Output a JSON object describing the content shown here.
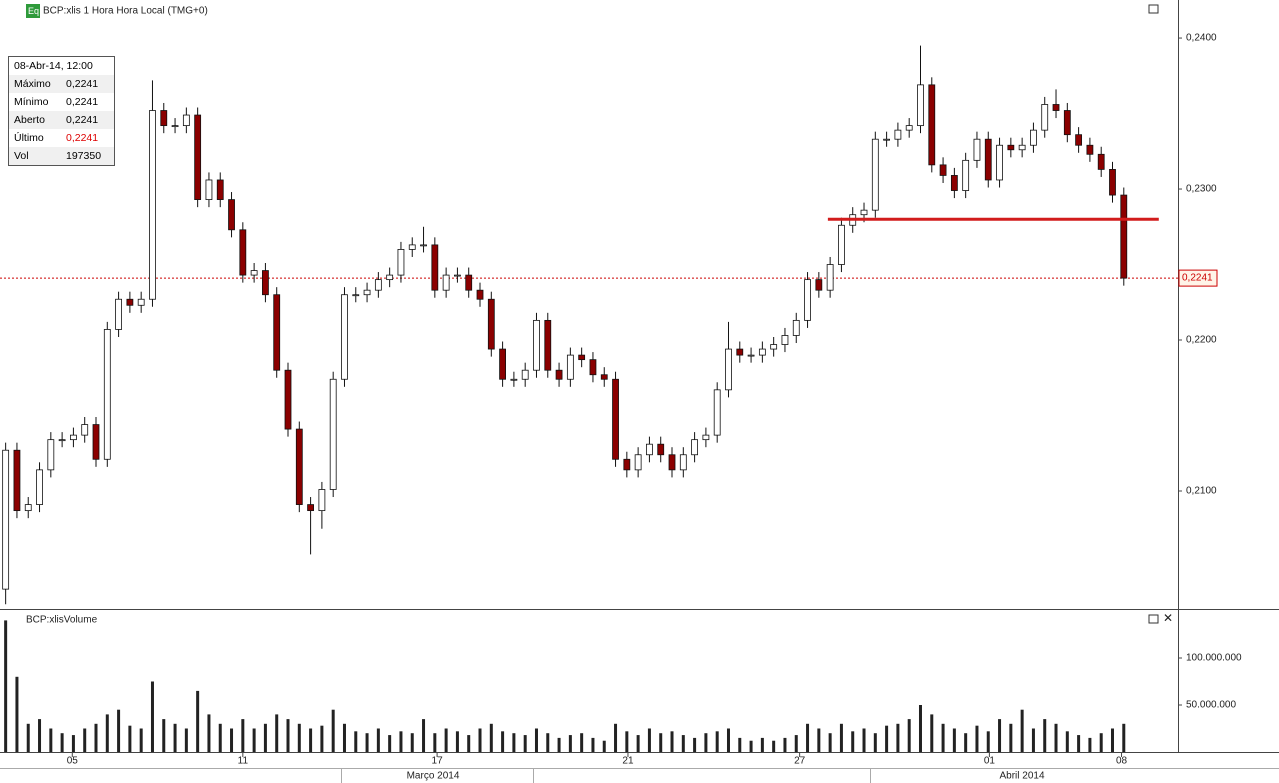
{
  "header": {
    "badge": "Eq",
    "title": "BCP:xlis 1 Hora Hora Local (TMG+0)"
  },
  "info": {
    "date": "08-Abr-14, 12:00",
    "rows": [
      [
        "Máximo",
        "0,2241"
      ],
      [
        "Mínimo",
        "0,2241"
      ],
      [
        "Aberto",
        "0,2241"
      ],
      [
        "Último",
        "0,2241"
      ],
      [
        "Vol",
        "197350"
      ]
    ]
  },
  "chart_data": [
    {
      "type": "candlestick",
      "months": [
        "Março 2014",
        "Abril 2014"
      ],
      "xlim": [
        -0.5,
        103.8
      ],
      "xticks": [
        {
          "value": 5.9,
          "label": "05"
        },
        {
          "value": 21.0,
          "label": "11"
        },
        {
          "value": 38.2,
          "label": "17"
        },
        {
          "value": 55.1,
          "label": "21"
        },
        {
          "value": 70.3,
          "label": "27"
        },
        {
          "value": 87.1,
          "label": "01"
        },
        {
          "value": 98.8,
          "label": "08"
        }
      ],
      "ylim": [
        0.20225,
        0.24252
      ],
      "yticks": [
        {
          "value": 0.21,
          "label": "0,2100"
        },
        {
          "value": 0.22,
          "label": "0,2200"
        },
        {
          "value": 0.23,
          "label": "0,2300"
        },
        {
          "value": 0.24,
          "label": "0,2400"
        }
      ],
      "up_color": "#ffffff",
      "down_color": "#8b0000",
      "open": [
        0.2035,
        0.2127,
        0.2087,
        0.2091,
        0.2114,
        0.2134,
        0.2134,
        0.2137,
        0.2144,
        0.2121,
        0.2207,
        0.2227,
        0.2223,
        0.2227,
        0.2352,
        0.2342,
        0.2342,
        0.2349,
        0.2293,
        0.2306,
        0.2293,
        0.2273,
        0.2243,
        0.2246,
        0.223,
        0.218,
        0.2141,
        0.2091,
        0.2087,
        0.2101,
        0.2174,
        0.223,
        0.223,
        0.2233,
        0.224,
        0.2243,
        0.226,
        0.2263,
        0.2263,
        0.2233,
        0.2243,
        0.2243,
        0.2233,
        0.2227,
        0.2194,
        0.2174,
        0.2174,
        0.218,
        0.2213,
        0.218,
        0.2174,
        0.219,
        0.2187,
        0.2177,
        0.2174,
        0.2121,
        0.2114,
        0.2124,
        0.2131,
        0.2124,
        0.2114,
        0.2124,
        0.2134,
        0.2137,
        0.2167,
        0.2194,
        0.219,
        0.219,
        0.2194,
        0.2197,
        0.2203,
        0.2213,
        0.224,
        0.2233,
        0.225,
        0.2276,
        0.2283,
        0.2286,
        0.2333,
        0.2333,
        0.2339,
        0.2342,
        0.2369,
        0.2316,
        0.2309,
        0.2299,
        0.2319,
        0.2333,
        0.2306,
        0.2329,
        0.2326,
        0.2329,
        0.2339,
        0.2356,
        0.2352,
        0.2336,
        0.2329,
        0.2323,
        0.2313,
        0.2296
      ],
      "high": [
        0.2132,
        0.2132,
        0.2096,
        0.2119,
        0.2139,
        0.2139,
        0.2142,
        0.2149,
        0.2149,
        0.2212,
        0.2232,
        0.2232,
        0.2232,
        0.2372,
        0.2357,
        0.2347,
        0.2354,
        0.2354,
        0.2311,
        0.2311,
        0.2298,
        0.2278,
        0.2251,
        0.2251,
        0.2235,
        0.2185,
        0.2146,
        0.2096,
        0.2106,
        0.2179,
        0.2235,
        0.2235,
        0.2238,
        0.2245,
        0.2248,
        0.2265,
        0.2268,
        0.2275,
        0.2268,
        0.2248,
        0.2248,
        0.2248,
        0.2238,
        0.2232,
        0.2199,
        0.2179,
        0.2185,
        0.2218,
        0.2218,
        0.2185,
        0.2195,
        0.2195,
        0.2192,
        0.2182,
        0.2179,
        0.2126,
        0.2129,
        0.2136,
        0.2136,
        0.2129,
        0.2129,
        0.2139,
        0.2142,
        0.2172,
        0.2212,
        0.2199,
        0.2195,
        0.2199,
        0.2202,
        0.2208,
        0.2218,
        0.2245,
        0.2245,
        0.2255,
        0.2281,
        0.2288,
        0.2291,
        0.2338,
        0.2338,
        0.2344,
        0.2347,
        0.2395,
        0.2374,
        0.2321,
        0.2314,
        0.2324,
        0.2338,
        0.2338,
        0.2334,
        0.2334,
        0.2334,
        0.2344,
        0.2361,
        0.2366,
        0.2357,
        0.2341,
        0.2334,
        0.2328,
        0.2318,
        0.2301
      ],
      "low": [
        0.2025,
        0.2082,
        0.2082,
        0.2086,
        0.2109,
        0.2129,
        0.2129,
        0.2132,
        0.2116,
        0.2116,
        0.2202,
        0.2218,
        0.2218,
        0.2222,
        0.2337,
        0.2337,
        0.2337,
        0.2288,
        0.2288,
        0.2288,
        0.2268,
        0.2238,
        0.2238,
        0.2225,
        0.2175,
        0.2136,
        0.2086,
        0.2058,
        0.2075,
        0.2096,
        0.2169,
        0.2225,
        0.2225,
        0.2228,
        0.2235,
        0.2238,
        0.2255,
        0.2258,
        0.2228,
        0.2228,
        0.2238,
        0.2228,
        0.2222,
        0.2189,
        0.2169,
        0.2169,
        0.2169,
        0.2175,
        0.2175,
        0.2169,
        0.2169,
        0.2182,
        0.2172,
        0.2169,
        0.2116,
        0.2109,
        0.2109,
        0.2119,
        0.2119,
        0.2109,
        0.2109,
        0.2119,
        0.2129,
        0.2132,
        0.2162,
        0.2185,
        0.2185,
        0.2185,
        0.2189,
        0.2192,
        0.2198,
        0.2208,
        0.2228,
        0.2228,
        0.2245,
        0.2271,
        0.2278,
        0.2281,
        0.2328,
        0.2328,
        0.2334,
        0.2337,
        0.2311,
        0.2304,
        0.2294,
        0.2294,
        0.2314,
        0.2301,
        0.2301,
        0.2321,
        0.2321,
        0.2324,
        0.2334,
        0.2347,
        0.2331,
        0.2324,
        0.2318,
        0.2308,
        0.2291,
        0.2236
      ],
      "close": [
        0.2127,
        0.2087,
        0.2091,
        0.2114,
        0.2134,
        0.2134,
        0.2137,
        0.2144,
        0.2121,
        0.2207,
        0.2227,
        0.2223,
        0.2227,
        0.2352,
        0.2342,
        0.2342,
        0.2349,
        0.2293,
        0.2306,
        0.2293,
        0.2273,
        0.2243,
        0.2246,
        0.223,
        0.218,
        0.2141,
        0.2091,
        0.2087,
        0.2101,
        0.2174,
        0.223,
        0.223,
        0.2233,
        0.224,
        0.2243,
        0.226,
        0.2263,
        0.2263,
        0.2233,
        0.2243,
        0.2243,
        0.2233,
        0.2227,
        0.2194,
        0.2174,
        0.2174,
        0.218,
        0.2213,
        0.218,
        0.2174,
        0.219,
        0.2187,
        0.2177,
        0.2174,
        0.2121,
        0.2114,
        0.2124,
        0.2131,
        0.2124,
        0.2114,
        0.2124,
        0.2134,
        0.2137,
        0.2167,
        0.2194,
        0.219,
        0.219,
        0.2194,
        0.2197,
        0.2203,
        0.2213,
        0.224,
        0.2233,
        0.225,
        0.2276,
        0.2283,
        0.2286,
        0.2333,
        0.2333,
        0.2339,
        0.2342,
        0.2369,
        0.2316,
        0.2309,
        0.2299,
        0.2319,
        0.2333,
        0.2306,
        0.2329,
        0.2326,
        0.2329,
        0.2339,
        0.2356,
        0.2352,
        0.2336,
        0.2329,
        0.2323,
        0.2313,
        0.2296,
        0.2241
      ],
      "hline": {
        "value": 0.228,
        "from": 72.8,
        "to": 102.1,
        "color": "#d21c1c"
      },
      "last_price": {
        "value": 0.2241,
        "label": "0,2241",
        "color": "#cc0000"
      }
    },
    {
      "type": "volume",
      "title": "BCP:xlisVolume",
      "color": "#222222",
      "xlim": [
        -0.5,
        103.8
      ],
      "ylim": [
        0,
        150000000
      ],
      "yticks": [
        {
          "value": 50000000,
          "label": "50.000.000"
        },
        {
          "value": 100000000,
          "label": "100.000.000"
        }
      ],
      "values": [
        140000000,
        80000000,
        30000000,
        35000000,
        25000000,
        20000000,
        18000000,
        25000000,
        30000000,
        40000000,
        45000000,
        28000000,
        25000000,
        75000000,
        35000000,
        30000000,
        25000000,
        65000000,
        40000000,
        30000000,
        25000000,
        35000000,
        25000000,
        30000000,
        40000000,
        35000000,
        30000000,
        25000000,
        28000000,
        45000000,
        30000000,
        22000000,
        20000000,
        25000000,
        18000000,
        22000000,
        20000000,
        35000000,
        20000000,
        25000000,
        22000000,
        18000000,
        25000000,
        30000000,
        22000000,
        20000000,
        18000000,
        25000000,
        20000000,
        15000000,
        18000000,
        20000000,
        15000000,
        12000000,
        30000000,
        22000000,
        18000000,
        25000000,
        20000000,
        22000000,
        18000000,
        15000000,
        20000000,
        22000000,
        25000000,
        15000000,
        12000000,
        15000000,
        12000000,
        15000000,
        18000000,
        30000000,
        25000000,
        20000000,
        30000000,
        22000000,
        25000000,
        20000000,
        28000000,
        30000000,
        35000000,
        50000000,
        40000000,
        30000000,
        25000000,
        20000000,
        28000000,
        22000000,
        35000000,
        30000000,
        45000000,
        25000000,
        35000000,
        30000000,
        22000000,
        18000000,
        15000000,
        20000000,
        25000000,
        30000000
      ]
    }
  ]
}
